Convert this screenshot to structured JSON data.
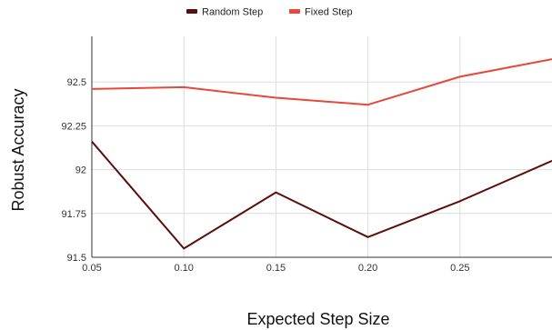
{
  "chart_data": {
    "type": "line",
    "title": "",
    "xlabel": "Expected Step Size",
    "ylabel": "Robust Accuracy",
    "x": [
      0.05,
      0.1,
      0.15,
      0.2,
      0.25,
      0.3
    ],
    "x_tick_labels": [
      "0.05",
      "0.10",
      "0.15",
      "0.20",
      "0.25"
    ],
    "x_ticks": [
      0.05,
      0.1,
      0.15,
      0.2,
      0.25
    ],
    "y_tick_labels": [
      "91.5",
      "91.75",
      "92",
      "92.25",
      "92.5"
    ],
    "y_ticks": [
      91.5,
      91.75,
      92.0,
      92.25,
      92.5
    ],
    "xlim": [
      0.05,
      0.3
    ],
    "ylim": [
      91.5,
      92.76
    ],
    "grid": true,
    "legend_position": "top-center",
    "series": [
      {
        "name": "Random Step",
        "color": "#5a0f0a",
        "values": [
          92.16,
          91.55,
          91.87,
          91.615,
          91.82,
          92.05
        ]
      },
      {
        "name": "Fixed Step",
        "color": "#e8473b",
        "values": [
          92.46,
          92.47,
          92.41,
          92.37,
          92.53,
          92.63
        ]
      }
    ]
  }
}
